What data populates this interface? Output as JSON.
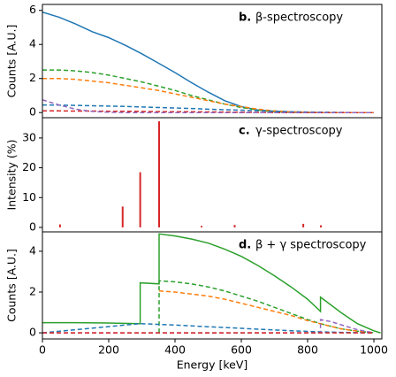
{
  "chart_data": [
    {
      "type": "line",
      "label": "b.",
      "title": "β-spectroscopy",
      "ylabel": "Counts [A.U.]",
      "xlim": [
        0,
        1024
      ],
      "ylim": [
        -0.3,
        6.35
      ],
      "yticks": [
        0,
        2,
        4,
        6
      ],
      "series": [
        {
          "color": "#1f77b4",
          "dashed": false,
          "x": [
            0,
            50,
            100,
            150,
            200,
            250,
            300,
            350,
            400,
            450,
            500,
            550,
            600,
            650,
            700,
            750,
            800,
            850,
            900,
            950,
            1000
          ],
          "values": [
            5.9,
            5.6,
            5.2,
            4.75,
            4.4,
            3.95,
            3.45,
            2.9,
            2.35,
            1.75,
            1.2,
            0.7,
            0.35,
            0.15,
            0.07,
            0.03,
            0.01,
            0,
            0,
            0,
            0
          ]
        },
        {
          "color": "#2ca02c",
          "dashed": true,
          "x": [
            0,
            50,
            100,
            150,
            200,
            250,
            300,
            350,
            400,
            450,
            500,
            550,
            600,
            650,
            700,
            750,
            800,
            850,
            900,
            950,
            1000
          ],
          "values": [
            2.5,
            2.5,
            2.45,
            2.35,
            2.2,
            2.0,
            1.8,
            1.55,
            1.3,
            1.0,
            0.75,
            0.5,
            0.3,
            0.15,
            0.05,
            0.02,
            0,
            0,
            0,
            0,
            0
          ]
        },
        {
          "color": "#ff7f0e",
          "dashed": true,
          "x": [
            0,
            50,
            100,
            150,
            200,
            250,
            300,
            350,
            400,
            450,
            500,
            550,
            600,
            650,
            700,
            750,
            800,
            850,
            900,
            950,
            1000
          ],
          "values": [
            2.0,
            2.0,
            1.95,
            1.85,
            1.75,
            1.6,
            1.45,
            1.3,
            1.1,
            0.9,
            0.7,
            0.5,
            0.35,
            0.2,
            0.1,
            0.05,
            0.02,
            0,
            0,
            0,
            0
          ]
        },
        {
          "color": "#1f77b4",
          "dashed": true,
          "x": [
            0,
            50,
            100,
            150,
            200,
            250,
            300,
            350,
            400,
            450,
            500,
            550,
            600,
            650,
            700,
            750,
            800,
            850,
            900,
            950,
            1000
          ],
          "values": [
            0.45,
            0.44,
            0.42,
            0.4,
            0.38,
            0.36,
            0.33,
            0.3,
            0.27,
            0.24,
            0.2,
            0.17,
            0.14,
            0.11,
            0.08,
            0.05,
            0.03,
            0.02,
            0.01,
            0,
            0
          ]
        },
        {
          "color": "#d62728",
          "dashed": true,
          "x": [
            0,
            50,
            100,
            150,
            200,
            250,
            300,
            350,
            400,
            450,
            500,
            550,
            600,
            650,
            700,
            750,
            800,
            850,
            900,
            950,
            1000
          ],
          "values": [
            0.1,
            0.1,
            0.09,
            0.09,
            0.08,
            0.08,
            0.07,
            0.06,
            0.05,
            0.05,
            0.04,
            0.03,
            0.02,
            0.01,
            0,
            0,
            0,
            0,
            0,
            0,
            0
          ]
        },
        {
          "color": "#9467bd",
          "dashed": true,
          "x": [
            0,
            50,
            100,
            150,
            200,
            250,
            300,
            350,
            400,
            450,
            500,
            550,
            600,
            650,
            700,
            750,
            800,
            850,
            900,
            950,
            1000
          ],
          "values": [
            0.75,
            0.45,
            0.2,
            0.07,
            0.02,
            0,
            0,
            0,
            0,
            0,
            0,
            0,
            0,
            0,
            0,
            0,
            0,
            0,
            0,
            0,
            0
          ]
        }
      ]
    },
    {
      "type": "stem",
      "label": "c.",
      "title": "γ-spectroscopy",
      "ylabel": "Intensity (%)",
      "xlim": [
        0,
        1024
      ],
      "ylim": [
        -1.5,
        36.8
      ],
      "yticks": [
        0,
        10,
        20,
        30
      ],
      "series": [
        {
          "color": "#d62728",
          "x": [
            53,
            242,
            295,
            352,
            480,
            580,
            787,
            840
          ],
          "values": [
            1,
            7,
            18.5,
            35.6,
            0.5,
            0.8,
            1.2,
            0.7
          ]
        }
      ]
    },
    {
      "type": "line",
      "label": "d.",
      "title": "β + γ spectroscopy",
      "ylabel": "Counts [A.U.]",
      "xlabel": "Energy [keV]",
      "xlim": [
        0,
        1024
      ],
      "ylim": [
        -0.3,
        4.95
      ],
      "yticks": [
        0,
        2,
        4
      ],
      "xticks": [
        0,
        200,
        400,
        600,
        800,
        1000
      ],
      "series": [
        {
          "color": "#2ca02c",
          "dashed": false,
          "x": [
            0,
            100,
            200,
            295,
            295,
            352,
            352,
            400,
            450,
            500,
            550,
            600,
            650,
            700,
            750,
            800,
            839,
            839,
            900,
            950,
            1000,
            1020
          ],
          "values": [
            0.5,
            0.5,
            0.48,
            0.45,
            2.45,
            2.4,
            4.85,
            4.75,
            4.6,
            4.4,
            4.1,
            3.75,
            3.3,
            2.8,
            2.25,
            1.65,
            1.05,
            1.75,
            1.0,
            0.45,
            0.1,
            0
          ]
        },
        {
          "color": "#2ca02c",
          "dashed": true,
          "x": [
            352,
            352,
            400,
            450,
            500,
            550,
            600,
            650,
            700,
            750,
            800,
            850,
            900,
            950,
            1000
          ],
          "values": [
            0,
            2.55,
            2.5,
            2.4,
            2.25,
            2.05,
            1.8,
            1.55,
            1.25,
            0.95,
            0.65,
            0.4,
            0.2,
            0.08,
            0.01
          ]
        },
        {
          "color": "#ff7f0e",
          "dashed": true,
          "x": [
            352,
            400,
            450,
            500,
            550,
            600,
            650,
            700,
            750,
            800,
            850,
            900,
            950,
            1000
          ],
          "values": [
            2.05,
            2.0,
            1.9,
            1.8,
            1.65,
            1.45,
            1.25,
            1.05,
            0.85,
            0.6,
            0.4,
            0.2,
            0.08,
            0.01
          ]
        },
        {
          "color": "#1f77b4",
          "dashed": true,
          "x": [
            0,
            295,
            400,
            500,
            600,
            700,
            800,
            900,
            1000
          ],
          "values": [
            0,
            0.45,
            0.38,
            0.3,
            0.22,
            0.14,
            0.07,
            0.02,
            0
          ]
        },
        {
          "color": "#9467bd",
          "dashed": true,
          "x": [
            0,
            839,
            839,
            870,
            900,
            950,
            1000
          ],
          "values": [
            0,
            0,
            0.65,
            0.55,
            0.4,
            0.15,
            0
          ]
        },
        {
          "color": "#d62728",
          "dashed": true,
          "x": [
            0,
            1000
          ],
          "values": [
            0,
            0
          ]
        }
      ]
    }
  ]
}
